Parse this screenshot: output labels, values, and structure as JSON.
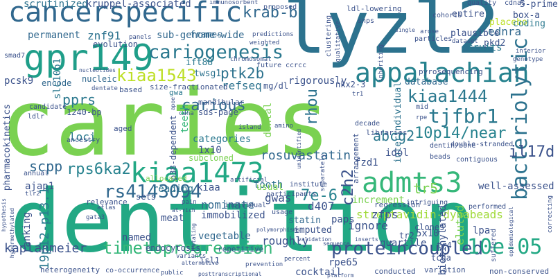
{
  "cloud": {
    "words": [
      {
        "text": "caries",
        "color": "#7ad151"
      },
      {
        "text": "dentition",
        "color": "#22a884"
      },
      {
        "text": "lyzl2",
        "color": "#2c728e"
      },
      {
        "text": "cancerspecific",
        "color": "#31688e"
      },
      {
        "text": "gpr149",
        "color": "#1f9e89"
      },
      {
        "text": "appalachian",
        "color": "#26828e"
      },
      {
        "text": "cariogenesis",
        "color": "#2a788e"
      },
      {
        "text": "admts3",
        "color": "#35b779"
      },
      {
        "text": "kiaa1473",
        "color": "#22a884"
      },
      {
        "text": "kiaa1543",
        "color": "#bddf26"
      },
      {
        "text": "kiaa1444",
        "color": "#2a788e"
      },
      {
        "text": "bacteriolytic",
        "color": "#2c728e"
      },
      {
        "text": "tjfbr1",
        "color": "#2a788e"
      },
      {
        "text": "ptk2b",
        "color": "#2c728e"
      },
      {
        "text": "krab-b",
        "color": "#31688e"
      },
      {
        "text": "rs4143094",
        "color": "#31688e"
      },
      {
        "text": "proteincoupled",
        "color": "#3b528b"
      },
      {
        "text": "timetoprogression",
        "color": "#35b779"
      },
      {
        "text": "10e-05",
        "color": "#22a884"
      },
      {
        "text": "10p14/near",
        "color": "#26828e"
      },
      {
        "text": "rps6ka2",
        "color": "#26828e"
      },
      {
        "text": "carious",
        "color": "#31688e"
      },
      {
        "text": "pprs",
        "color": "#2a788e"
      },
      {
        "text": "scpp",
        "color": "#31688e"
      },
      {
        "text": "abcg2",
        "color": "#2a788e"
      },
      {
        "text": "il17d",
        "color": "#3b528b"
      },
      {
        "text": "rhou",
        "color": "#2c728e"
      },
      {
        "text": "c2h2",
        "color": "#3b528b"
      },
      {
        "text": "7e-6",
        "color": "#26828e"
      },
      {
        "text": "tr5",
        "color": "#7ad151"
      },
      {
        "text": "streptavidin-dynabeads",
        "color": "#a0da39"
      },
      {
        "text": "rosuvastatin",
        "color": "#31688e"
      },
      {
        "text": "kruppel-associated",
        "color": "#3b528b"
      },
      {
        "text": "scrutinized",
        "color": "#2c728e"
      },
      {
        "text": "permanent",
        "color": "#31688e"
      },
      {
        "text": "znf91",
        "color": "#2c728e"
      },
      {
        "text": "sub-genome-wide",
        "color": "#31688e"
      },
      {
        "text": "frames",
        "color": "#31688e"
      },
      {
        "text": "evolution",
        "color": "#3b528b"
      },
      {
        "text": "ift88",
        "color": "#2a788e"
      },
      {
        "text": "twsg1",
        "color": "#2c728e"
      },
      {
        "text": "refseq",
        "color": "#2c728e"
      },
      {
        "text": "pcsk9",
        "color": "#3b528b"
      },
      {
        "text": "encode",
        "color": "#31688e"
      },
      {
        "text": "nucleic",
        "color": "#31688e"
      },
      {
        "text": "teeth",
        "color": "#35b779"
      },
      {
        "text": "loci",
        "color": "#2a788e"
      },
      {
        "text": "categories",
        "color": "#2a788e"
      },
      {
        "text": "1x10",
        "color": "#3b528b"
      },
      {
        "text": "subcloned",
        "color": "#7ad151"
      },
      {
        "text": "dental",
        "color": "#7ad151"
      },
      {
        "text": "ajap1",
        "color": "#3b528b"
      },
      {
        "text": "tooth",
        "color": "#2c728e"
      },
      {
        "text": "d407",
        "color": "#3b528b"
      },
      {
        "text": "gwas",
        "color": "#3b528b"
      },
      {
        "text": "reading",
        "color": "#2c728e"
      },
      {
        "text": "kiaa",
        "color": "#3b528b"
      },
      {
        "text": "nominate",
        "color": "#31688e"
      },
      {
        "text": "immobilized",
        "color": "#3b528b"
      },
      {
        "text": "paps",
        "color": "#3b528b"
      },
      {
        "text": "ignore",
        "color": "#3b528b"
      },
      {
        "text": "zfps",
        "color": "#3b528b"
      },
      {
        "text": "5x10",
        "color": "#3b528b"
      },
      {
        "text": "statin",
        "color": "#31688e"
      },
      {
        "text": "imputed",
        "color": "#3b528b"
      },
      {
        "text": "roughly",
        "color": "#3b528b"
      },
      {
        "text": "quartile",
        "color": "#3b528b"
      },
      {
        "text": "vegetable",
        "color": "#31688e"
      },
      {
        "text": "kaplanmeier",
        "color": "#3b528b"
      },
      {
        "text": "ranking",
        "color": "#3b528b"
      },
      {
        "text": "named",
        "color": "#3b528b"
      },
      {
        "text": "19p12-p13.1",
        "color": "#2a788e"
      },
      {
        "text": "rpe65",
        "color": "#3b528b"
      },
      {
        "text": "cocktail",
        "color": "#3b528b"
      },
      {
        "text": "biotinylated",
        "color": "#3b528b"
      },
      {
        "text": "eluted",
        "color": "#7ad151"
      },
      {
        "text": "lpa",
        "color": "#3b528b"
      },
      {
        "text": "ednra",
        "color": "#31688e"
      },
      {
        "text": "pkd2",
        "color": "#3b528b"
      },
      {
        "text": "fruits",
        "color": "#2a788e"
      },
      {
        "text": "placebo",
        "color": "#bddf26"
      },
      {
        "text": "coding",
        "color": "#2a788e"
      },
      {
        "text": "box-a",
        "color": "#3b528b"
      },
      {
        "text": "5-prime",
        "color": "#3b528b"
      },
      {
        "text": "database",
        "color": "#31688e"
      },
      {
        "text": "interindividual",
        "color": "#2c728e"
      },
      {
        "text": "nkx2-3",
        "color": "#3b528b"
      },
      {
        "text": "rigorously",
        "color": "#3b528b"
      },
      {
        "text": "mg/dl",
        "color": "#3b528b"
      },
      {
        "text": "idol",
        "color": "#3b528b"
      },
      {
        "text": "fzd1",
        "color": "#3b528b"
      },
      {
        "text": "well-assessed",
        "color": "#3b528b"
      },
      {
        "text": "1240-bp",
        "color": "#3b528b"
      },
      {
        "text": "sds-page",
        "color": "#3b528b"
      },
      {
        "text": "mandibular",
        "color": "#3b528b"
      },
      {
        "text": "usual",
        "color": "#7ad151"
      },
      {
        "text": "increment",
        "color": "#7ad151"
      },
      {
        "text": "slc10b1",
        "color": "#2a788e"
      },
      {
        "text": "pharmacokinetics",
        "color": "#3b528b"
      },
      {
        "text": "p38-dependent",
        "color": "#3b528b"
      },
      {
        "text": "entire",
        "color": "#3b528b"
      },
      {
        "text": "plausible",
        "color": "#3b528b"
      },
      {
        "text": "ldl-lowering",
        "color": "#3b528b"
      },
      {
        "text": "gwa",
        "color": "#2a788e"
      },
      {
        "text": "allocated",
        "color": "#7ad151"
      },
      {
        "text": "tr4",
        "color": "#3b528b"
      },
      {
        "text": "tr2",
        "color": "#3b528b"
      },
      {
        "text": "tcga",
        "color": "#3b528b"
      },
      {
        "text": "clones",
        "color": "#3b528b"
      },
      {
        "text": "meat",
        "color": "#3b528b"
      },
      {
        "text": "endocytosis",
        "color": "#3b528b"
      },
      {
        "text": "isl1",
        "color": "#3b528b"
      },
      {
        "text": "sets",
        "color": "#3b528b"
      },
      {
        "text": "relevance",
        "color": "#3b528b"
      },
      {
        "text": "pyrosequencing",
        "color": "#3b528b"
      },
      {
        "text": "based",
        "color": "#3b528b"
      },
      {
        "text": "size-fractionated",
        "color": "#3b528b"
      },
      {
        "text": "candidate",
        "color": "#3b528b"
      },
      {
        "text": "ancestry",
        "color": "#3b528b"
      },
      {
        "text": "aged",
        "color": "#3b528b"
      },
      {
        "text": "annual",
        "color": "#3b528b"
      },
      {
        "text": "heterogeneity",
        "color": "#3b528b"
      },
      {
        "text": "co-occurrence",
        "color": "#3b528b"
      },
      {
        "text": "conducted",
        "color": "#3b528b"
      },
      {
        "text": "variation",
        "color": "#3b528b"
      },
      {
        "text": "non-conserved",
        "color": "#3b528b"
      },
      {
        "text": "regression",
        "color": "#3b528b"
      },
      {
        "text": "participants",
        "color": "#3b528b"
      },
      {
        "text": "institute",
        "color": "#3b528b"
      },
      {
        "text": "repetitive",
        "color": "#3b528b"
      },
      {
        "text": "individual",
        "color": "#3b528b"
      },
      {
        "text": "usage",
        "color": "#3b528b"
      },
      {
        "text": "mid",
        "color": "#3b528b"
      },
      {
        "text": "arrangement",
        "color": "#3b528b"
      },
      {
        "text": "libraries",
        "color": "#3b528b"
      },
      {
        "text": "decade",
        "color": "#3b528b"
      },
      {
        "text": "intriguing",
        "color": "#3b528b"
      },
      {
        "text": "suffered",
        "color": "#3b528b"
      },
      {
        "text": "performed",
        "color": "#3b528b"
      },
      {
        "text": "contiguous",
        "color": "#3b528b"
      },
      {
        "text": "double-stranded",
        "color": "#3b528b"
      },
      {
        "text": "beads",
        "color": "#3b528b"
      },
      {
        "text": "dentin/bone",
        "color": "#3b528b"
      },
      {
        "text": "snps",
        "color": "#3b528b"
      },
      {
        "text": "cohorts",
        "color": "#3b528b"
      },
      {
        "text": "quality",
        "color": "#3b528b"
      },
      {
        "text": "cdnas",
        "color": "#3b528b"
      },
      {
        "text": "proposed",
        "color": "#3b528b"
      },
      {
        "text": "immunosorbent",
        "color": "#3b528b"
      },
      {
        "text": "panels",
        "color": "#3b528b"
      },
      {
        "text": "weighted",
        "color": "#3b528b"
      },
      {
        "text": "predictions",
        "color": "#3b528b"
      },
      {
        "text": "chromosomal",
        "color": "#3b528b"
      },
      {
        "text": "future",
        "color": "#3b528b"
      },
      {
        "text": "ccrcc",
        "color": "#3b528b"
      },
      {
        "text": "smad7",
        "color": "#3b528b"
      },
      {
        "text": "nucleotides",
        "color": "#3b528b"
      },
      {
        "text": "dentate",
        "color": "#3b528b"
      },
      {
        "text": "ldlr",
        "color": "#3b528b"
      },
      {
        "text": "cdna",
        "color": "#3b528b"
      },
      {
        "text": "island",
        "color": "#3b528b"
      },
      {
        "text": "amino",
        "color": "#3b528b"
      },
      {
        "text": "artificial",
        "color": "#3b528b"
      },
      {
        "text": "atlas",
        "color": "#3b528b"
      },
      {
        "text": "pain",
        "color": "#3b528b"
      },
      {
        "text": "variants",
        "color": "#3b528b"
      },
      {
        "text": "prevention",
        "color": "#3b528b"
      },
      {
        "text": "public",
        "color": "#3b528b"
      },
      {
        "text": "percent",
        "color": "#3b528b"
      },
      {
        "text": "gata3",
        "color": "#3b528b"
      },
      {
        "text": "tlr2",
        "color": "#3b528b"
      },
      {
        "text": "hypothesis",
        "color": "#3b528b"
      },
      {
        "text": "hypermethylated",
        "color": "#3b528b"
      },
      {
        "text": "inferior",
        "color": "#3b528b"
      },
      {
        "text": "genotype",
        "color": "#3b528b"
      },
      {
        "text": "correcting",
        "color": "#3b528b"
      },
      {
        "text": "epidemiological",
        "color": "#3b528b"
      },
      {
        "text": "rpe",
        "color": "#3b528b"
      },
      {
        "text": "totaling",
        "color": "#3b528b"
      },
      {
        "text": "inserts",
        "color": "#3b528b"
      },
      {
        "text": "sequence",
        "color": "#3b528b"
      },
      {
        "text": "validation",
        "color": "#3b528b"
      },
      {
        "text": "polymorphisms",
        "color": "#3b528b"
      },
      {
        "text": "single",
        "color": "#3b528b"
      },
      {
        "text": "inheriting",
        "color": "#3b528b"
      },
      {
        "text": "particles",
        "color": "#3b528b"
      },
      {
        "text": "arose",
        "color": "#3b528b"
      },
      {
        "text": "dataset",
        "color": "#3b528b"
      },
      {
        "text": "clustering",
        "color": "#3b528b"
      },
      {
        "text": "qualitative",
        "color": "#3b528b"
      },
      {
        "text": "unidentified",
        "color": "#3b528b"
      },
      {
        "text": "separately",
        "color": "#3b528b"
      },
      {
        "text": "tr1",
        "color": "#3b528b"
      },
      {
        "text": "posttranscriptional",
        "color": "#3b528b"
      },
      {
        "text": "platform",
        "color": "#3b528b"
      },
      {
        "text": "alternative",
        "color": "#3b528b"
      },
      {
        "text": "at-rich",
        "color": "#3b528b"
      },
      {
        "text": "apoe",
        "color": "#3b528b"
      }
    ]
  }
}
